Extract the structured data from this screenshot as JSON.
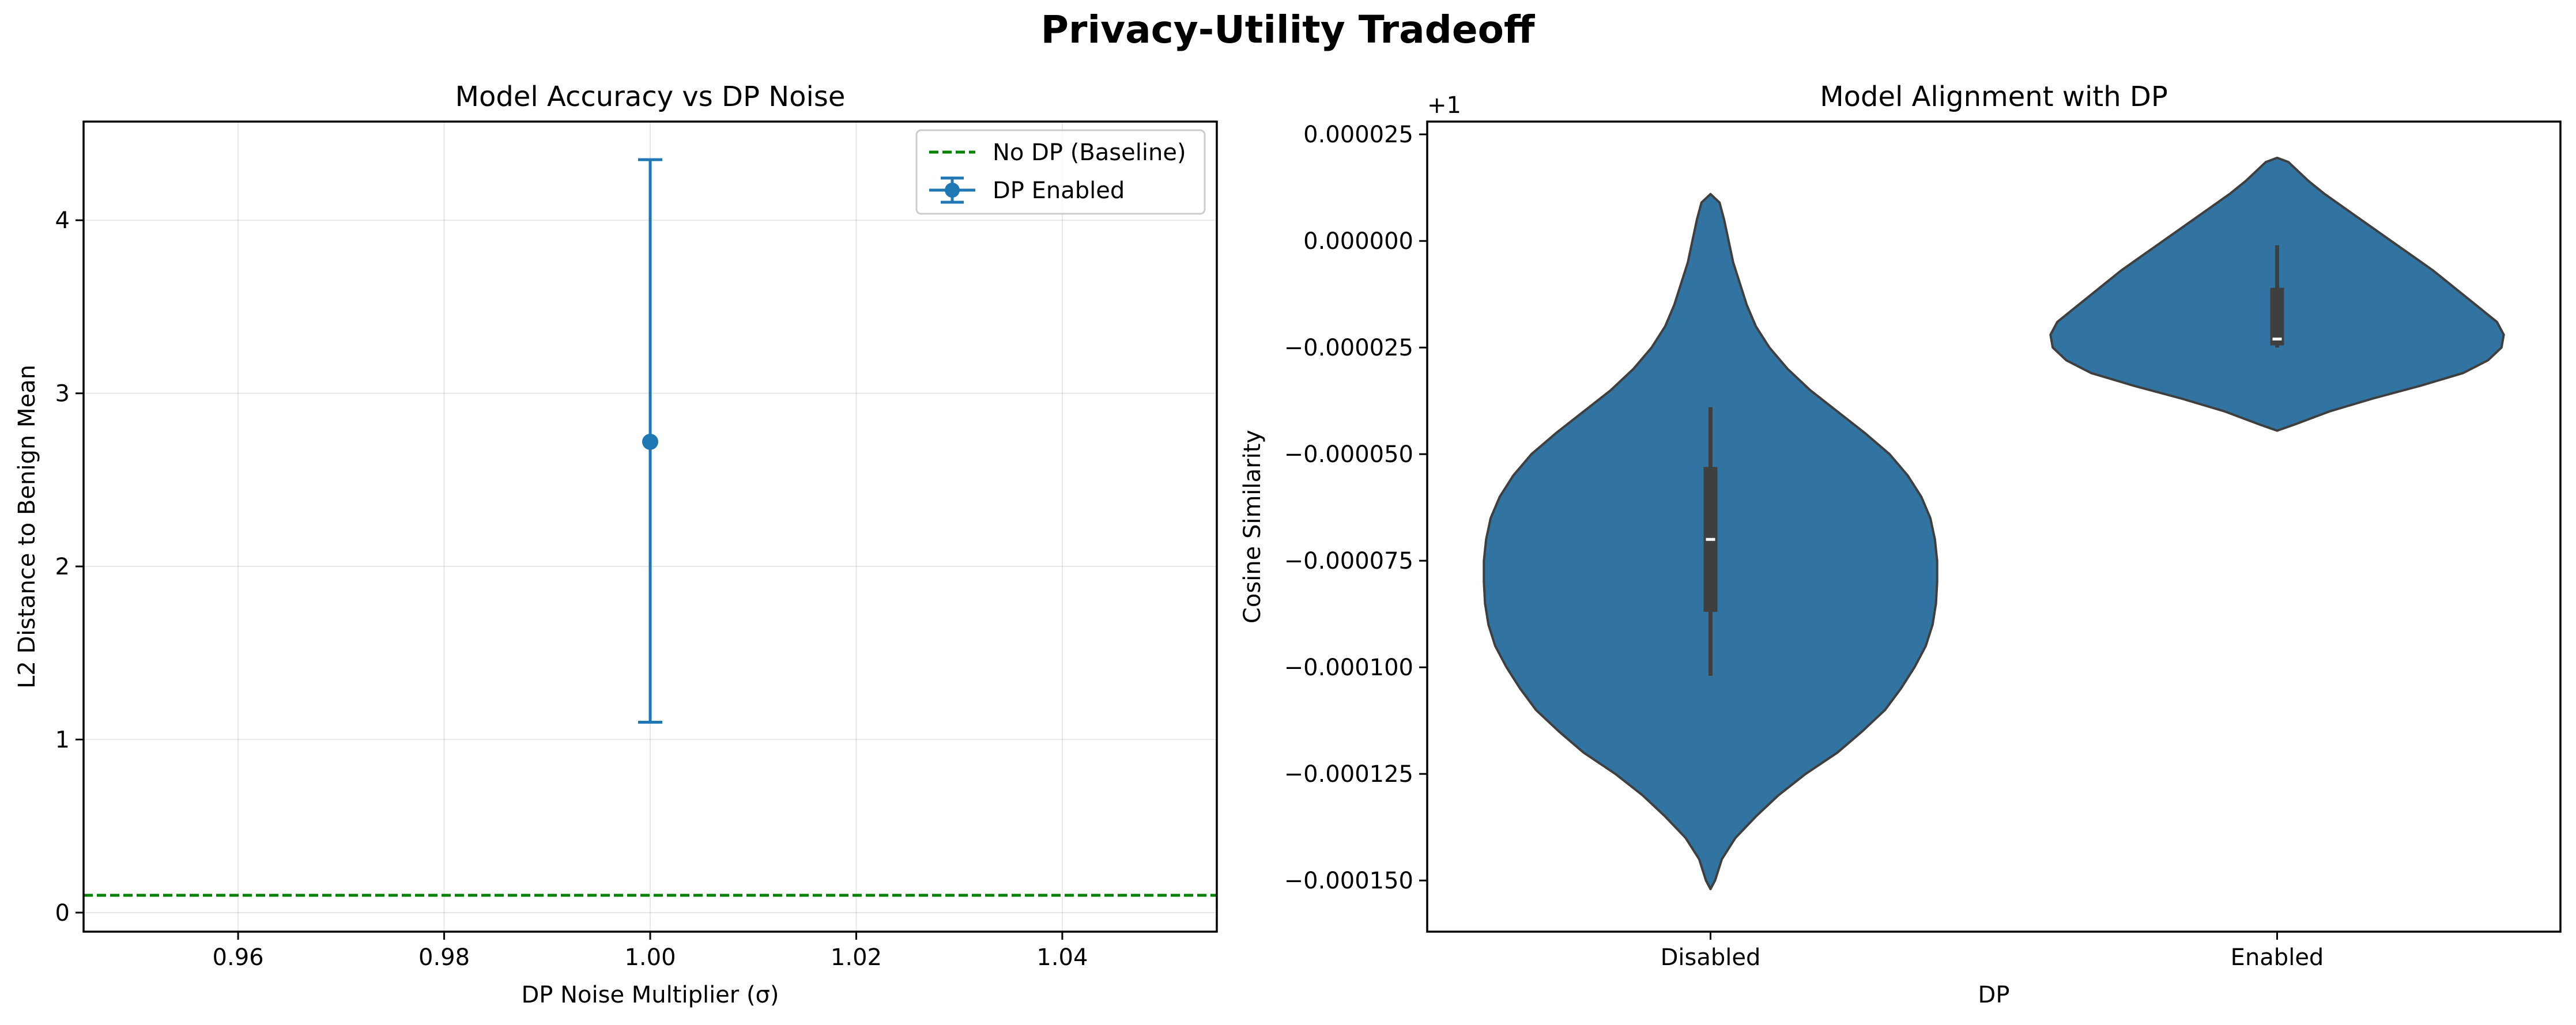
{
  "figure": {
    "title": "Privacy-Utility Tradeoff"
  },
  "chart_data": [
    {
      "type": "line",
      "title": "Model Accuracy vs DP Noise",
      "xlabel": "DP Noise Multiplier (σ)",
      "ylabel": "L2 Distance to Benign Mean",
      "xlim": [
        0.945,
        1.055
      ],
      "ylim": [
        -0.11,
        4.57
      ],
      "xticks": [
        0.96,
        0.98,
        1.0,
        1.02,
        1.04
      ],
      "xtick_labels": [
        "0.96",
        "0.98",
        "1.00",
        "1.02",
        "1.04"
      ],
      "yticks": [
        0,
        1,
        2,
        3,
        4
      ],
      "ytick_labels": [
        "0",
        "1",
        "2",
        "3",
        "4"
      ],
      "grid": true,
      "legend_position": "top-right",
      "series": [
        {
          "name": "No DP (Baseline)",
          "kind": "hline",
          "y": 0.1,
          "color": "#008000",
          "style": "dashed"
        },
        {
          "name": "DP Enabled",
          "kind": "errorbar",
          "points": [
            {
              "x": 1.0,
              "y": 2.72,
              "yerr_low": 1.1,
              "yerr_high": 4.35
            }
          ],
          "color": "#1f77b4"
        }
      ]
    },
    {
      "type": "violin",
      "title": "Model Alignment with DP",
      "xlabel": "DP",
      "ylabel": "Cosine Similarity",
      "offset_label": "+1",
      "categories": [
        "Disabled",
        "Enabled"
      ],
      "ylim": [
        -0.000162,
        2.8e-05
      ],
      "yticks": [
        -0.00015,
        -0.000125,
        -0.0001,
        -7.5e-05,
        -5e-05,
        -2.5e-05,
        0.0,
        2.5e-05
      ],
      "ytick_labels": [
        "−0.000150",
        "−0.000125",
        "−0.000100",
        "−0.000075",
        "−0.000050",
        "−0.000025",
        "0.000000",
        "0.000025"
      ],
      "grid": false,
      "color": "#3274a1",
      "violins": [
        {
          "category": "Disabled",
          "min": -0.000152,
          "max": 1.1e-05,
          "q1": -8.7e-05,
          "median": -7e-05,
          "q3": -5.3e-05,
          "whisker_low": -0.000102,
          "whisker_high": -3.9e-05,
          "density": [
            [
              -0.000152,
              0.0
            ],
            [
              -0.00015,
              0.02
            ],
            [
              -0.000145,
              0.05
            ],
            [
              -0.00014,
              0.11
            ],
            [
              -0.000135,
              0.2
            ],
            [
              -0.00013,
              0.3
            ],
            [
              -0.000125,
              0.42
            ],
            [
              -0.00012,
              0.56
            ],
            [
              -0.000115,
              0.67
            ],
            [
              -0.00011,
              0.77
            ],
            [
              -0.000105,
              0.84
            ],
            [
              -0.0001,
              0.9
            ],
            [
              -9.5e-05,
              0.95
            ],
            [
              -9e-05,
              0.98
            ],
            [
              -8.5e-05,
              0.995
            ],
            [
              -8e-05,
              1.0
            ],
            [
              -7.5e-05,
              1.0
            ],
            [
              -7e-05,
              0.99
            ],
            [
              -6.5e-05,
              0.97
            ],
            [
              -6e-05,
              0.93
            ],
            [
              -5.5e-05,
              0.87
            ],
            [
              -5e-05,
              0.79
            ],
            [
              -4.5e-05,
              0.68
            ],
            [
              -4e-05,
              0.56
            ],
            [
              -3.5e-05,
              0.44
            ],
            [
              -3e-05,
              0.34
            ],
            [
              -2.5e-05,
              0.26
            ],
            [
              -2e-05,
              0.2
            ],
            [
              -1.5e-05,
              0.16
            ],
            [
              -1e-05,
              0.13
            ],
            [
              -5e-06,
              0.1
            ],
            [
              0.0,
              0.08
            ],
            [
              5e-06,
              0.06
            ],
            [
              9e-06,
              0.04
            ],
            [
              1.1e-05,
              0.0
            ]
          ]
        },
        {
          "category": "Enabled",
          "min": -4.45e-05,
          "max": 1.95e-05,
          "q1": -2.45e-05,
          "median": -2.3e-05,
          "q3": -1.1e-05,
          "whisker_low": -2.5e-05,
          "whisker_high": -1e-06,
          "density": [
            [
              -4.45e-05,
              0.0
            ],
            [
              -4.3e-05,
              0.08
            ],
            [
              -4e-05,
              0.23
            ],
            [
              -3.7e-05,
              0.42
            ],
            [
              -3.4e-05,
              0.63
            ],
            [
              -3.1e-05,
              0.82
            ],
            [
              -2.8e-05,
              0.93
            ],
            [
              -2.5e-05,
              0.99
            ],
            [
              -2.2e-05,
              1.0
            ],
            [
              -1.9e-05,
              0.97
            ],
            [
              -1.6e-05,
              0.9
            ],
            [
              -1.3e-05,
              0.83
            ],
            [
              -1e-05,
              0.76
            ],
            [
              -7e-06,
              0.69
            ],
            [
              -4e-06,
              0.61
            ],
            [
              -1e-06,
              0.53
            ],
            [
              2e-06,
              0.45
            ],
            [
              5e-06,
              0.37
            ],
            [
              8e-06,
              0.29
            ],
            [
              1.1e-05,
              0.21
            ],
            [
              1.4e-05,
              0.14
            ],
            [
              1.6e-05,
              0.1
            ],
            [
              1.85e-05,
              0.05
            ],
            [
              1.95e-05,
              0.0
            ]
          ]
        }
      ]
    }
  ]
}
